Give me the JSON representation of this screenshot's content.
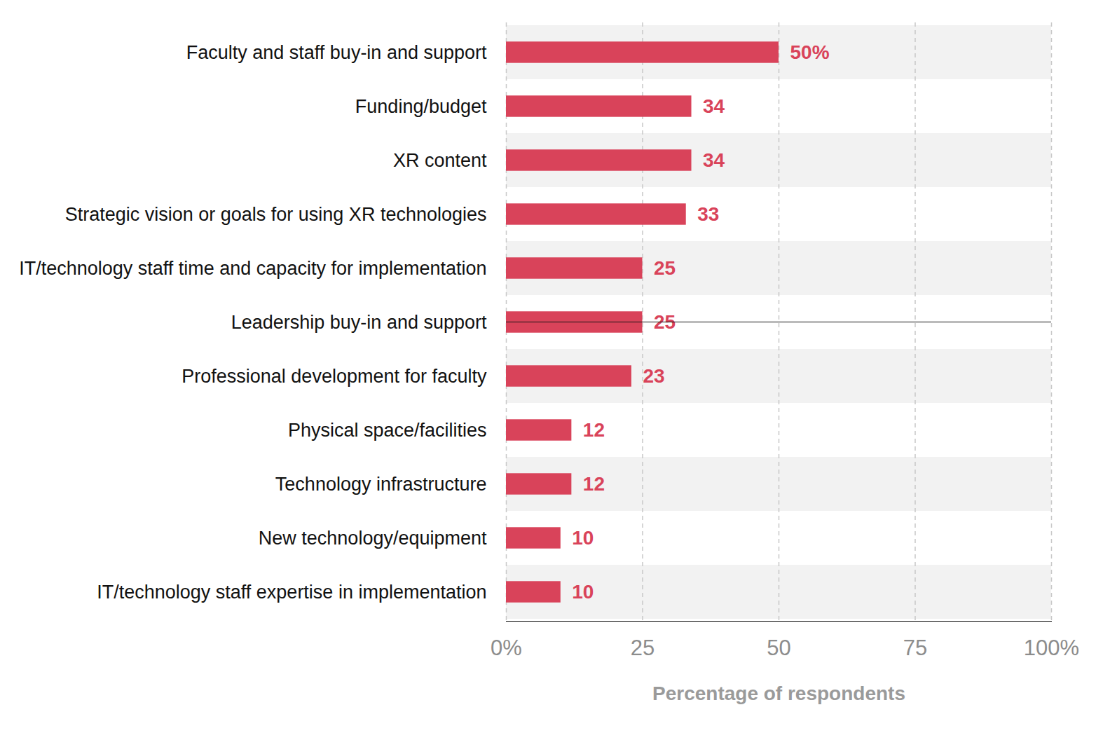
{
  "chart_data": {
    "type": "bar",
    "orientation": "horizontal",
    "xlabel": "Percentage of respondents",
    "categories": [
      "Faculty and staff buy-in and support",
      "Funding/budget",
      "XR content",
      "Strategic vision or goals for using XR technologies",
      "IT/technology staff time and capacity for implementation",
      "Leadership buy-in and support",
      "Professional development for faculty",
      "Physical space/facilities",
      "Technology infrastructure",
      "New technology/equipment",
      "IT/technology staff expertise in implementation"
    ],
    "values": [
      50,
      34,
      34,
      33,
      25,
      25,
      23,
      12,
      12,
      10,
      10
    ],
    "value_labels": [
      "50%",
      "34",
      "34",
      "33",
      "25",
      "25",
      "23",
      "12",
      "12",
      "10",
      "10"
    ],
    "data_labels": true,
    "color": "#d9435a",
    "xlim": [
      0,
      100
    ],
    "xticks": [
      {
        "value": 0,
        "label": "0%"
      },
      25,
      50,
      75,
      {
        "value": 100,
        "label": "100%"
      }
    ],
    "grid": true
  }
}
